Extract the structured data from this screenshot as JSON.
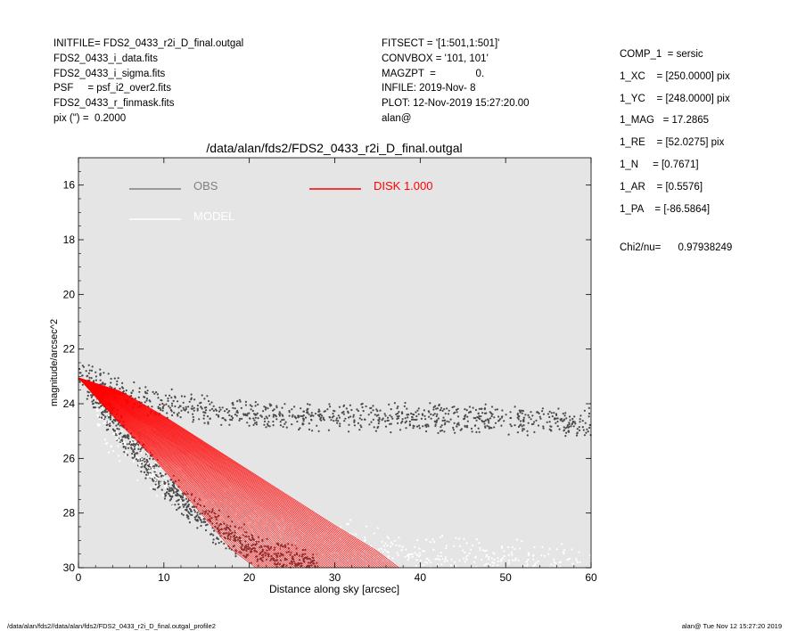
{
  "header_left": [
    "INITFILE= FDS2_0433_r2i_D_final.outgal",
    "FDS2_0433_i_data.fits",
    "FDS2_0433_i_sigma.fits",
    "PSF     = psf_i2_over2.fits",
    "FDS2_0433_r_finmask.fits",
    "pix (\") =  0.2000"
  ],
  "header_mid": [
    "FITSECT = '[1:501,1:501]'",
    "CONVBOX = '101, 101'",
    "MAGZPT  =              0.",
    "INFILE: 2019-Nov- 8",
    "PLOT: 12-Nov-2019 15:27:20.00",
    "alan@"
  ],
  "header_right": [
    "COMP_1  = sersic",
    "1_XC    = [250.0000] pix",
    "1_YC    = [248.0000] pix",
    "1_MAG   = 17.2865",
    "1_RE    = [52.0275] pix",
    "1_N     = [0.7671]",
    "1_AR    = [0.5576]",
    "1_PA    = [-86.5864]"
  ],
  "chi2": "Chi2/nu=      0.97938249",
  "footer": {
    "left": "/data/alan/fds2//data/alan/fds2/FDS2_0433_r2i_D_final.outgal_profile2",
    "right": "alan@  Tue Nov 12 15:27:20 2019"
  },
  "colors": {
    "plot_background": "#e5e5e5",
    "obs": "#4a4a4a",
    "model": "#ffffff",
    "disk": "#ff0000",
    "legend_obs": "#808080"
  },
  "chart_data": {
    "type": "scatter",
    "title": "/data/alan/fds2/FDS2_0433_r2i_D_final.outgal",
    "xlabel": "Distance along sky [arcsec]",
    "ylabel": "magnitude/arcsec^2",
    "xlim": [
      0,
      60
    ],
    "ylim": [
      30,
      15
    ],
    "y_inverted": true,
    "grid": false,
    "legend_position": "top",
    "x_ticks": [
      0,
      10,
      20,
      30,
      40,
      50,
      60
    ],
    "y_ticks": [
      16,
      18,
      20,
      22,
      24,
      26,
      28,
      30
    ],
    "legend": [
      {
        "label": "OBS",
        "color": "#808080"
      },
      {
        "label": "DISK  1.000",
        "color": "#ff0000"
      },
      {
        "label": "MODEL",
        "color": "#ffffff"
      }
    ],
    "series": [
      {
        "name": "OBS",
        "kind": "points",
        "color": "#4a4a4a",
        "bands": [
          {
            "x": [
              0,
              3,
              6,
              10,
              20,
              30,
              40,
              50,
              60
            ],
            "y": [
              22.9,
              23.3,
              23.7,
              24.0,
              24.4,
              24.5,
              24.5,
              24.6,
              24.7
            ],
            "spread": 0.6
          },
          {
            "x": [
              1,
              3,
              5,
              8,
              12,
              16,
              20,
              24,
              28
            ],
            "y": [
              23.4,
              24.2,
              25.0,
              26.2,
              27.5,
              28.5,
              29.2,
              29.7,
              30.0
            ],
            "spread": 0.7
          }
        ]
      },
      {
        "name": "MODEL",
        "kind": "points",
        "color": "#ffffff",
        "bands": [
          {
            "x": [
              2,
              10,
              20,
              30,
              40,
              50,
              60
            ],
            "y": [
              24.6,
              26.8,
              28.3,
              29.1,
              29.6,
              29.9,
              30.0
            ],
            "spread": 1.0
          }
        ]
      },
      {
        "name": "DISK  1.000",
        "kind": "fan",
        "color": "#ff0000",
        "upper": {
          "x": [
            0,
            5,
            10,
            15,
            20,
            25,
            30,
            35,
            37.5
          ],
          "y": [
            23.05,
            23.55,
            24.45,
            25.45,
            26.45,
            27.45,
            28.45,
            29.4,
            30.0
          ]
        },
        "lower": {
          "x": [
            0,
            3,
            6,
            9,
            12,
            15,
            18,
            20.8
          ],
          "y": [
            23.05,
            24.1,
            25.1,
            26.05,
            27.15,
            28.25,
            29.35,
            30.0
          ]
        }
      }
    ]
  }
}
